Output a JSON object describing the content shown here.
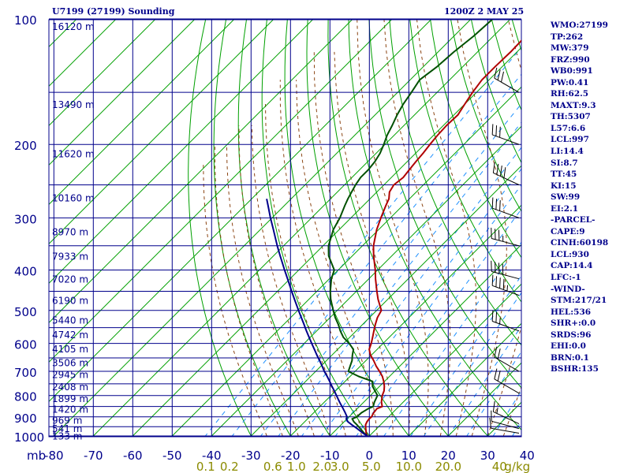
{
  "header": {
    "station": "U7199 (27199) Sounding",
    "valid_time": "1200Z  2 MAY 25"
  },
  "indices": [
    "WMO:27199",
    "TP:262",
    "MW:379",
    "FRZ:990",
    "WB0:991",
    "PW:0.41",
    "RH:62.5",
    "MAXT:9.3",
    "TH:5307",
    "L57:6.6",
    "LCL:997",
    "LI:14.4",
    "SI:8.7",
    "TT:45",
    "KI:15",
    "SW:99",
    "EI:2.1",
    "-PARCEL-",
    "CAPE:9",
    "CINH:60198",
    "LCL:930",
    "CAP:14.4",
    "LFC:-1",
    "-WIND-",
    "STM:217/21",
    "HEL:536",
    "SHR+:0.0",
    "SRDS:96",
    "EHI:0.0",
    "BRN:0.1",
    "BSHR:135"
  ],
  "colors": {
    "grid": "#00008b",
    "dry_adiabat": "#00a000",
    "moist_adiabat": "#8b4513",
    "mixing_ratio": "#1e90ff",
    "temperature": "#b00000",
    "dewpoint": "#005000",
    "parcel": "#00008b",
    "axis_text": "#00008b",
    "mixing_text": "#8b8b00"
  },
  "chart_data": {
    "type": "line",
    "xlabel": "",
    "ylabel": "mb",
    "xlim": [
      -80,
      40
    ],
    "ylim": [
      1000,
      100
    ],
    "pressure_ticks": [
      "1000",
      "900",
      "800",
      "700",
      "600",
      "500",
      "400",
      "300",
      "200",
      "100"
    ],
    "pressure_tick_values": [
      1000,
      900,
      800,
      700,
      600,
      500,
      400,
      300,
      200,
      100
    ],
    "temperature_ticks": [
      "-80",
      "-70",
      "-60",
      "-50",
      "-40",
      "-30",
      "-20",
      "-10",
      "0",
      "10",
      "20",
      "30",
      "40"
    ],
    "temperature_tick_values": [
      -80,
      -70,
      -60,
      -50,
      -40,
      -30,
      -20,
      -10,
      0,
      10,
      20,
      30,
      40
    ],
    "mixing_ratio_labels": [
      "0.1",
      "0.2",
      "0.6",
      "1.0",
      "2.0",
      "3.0",
      "5.0",
      "10.0",
      "20.0",
      "40",
      "g/kg"
    ],
    "mixing_ratio_label_positions": [
      -41.5,
      -35.5,
      -24.5,
      -18.5,
      -12,
      -7.5,
      0.5,
      10,
      20,
      33,
      37.5
    ],
    "height_labels": [
      {
        "p": 998,
        "label": "133 m"
      },
      {
        "p": 958,
        "label": "541 m"
      },
      {
        "p": 915,
        "label": "969 m"
      },
      {
        "p": 860,
        "label": "1420 m"
      },
      {
        "p": 812,
        "label": "1899 m"
      },
      {
        "p": 760,
        "label": "2408 m"
      },
      {
        "p": 710,
        "label": "2945 m"
      },
      {
        "p": 665,
        "label": "3506 m"
      },
      {
        "p": 617,
        "label": "4105 m"
      },
      {
        "p": 570,
        "label": "4742 m"
      },
      {
        "p": 526,
        "label": "5440 m"
      },
      {
        "p": 472,
        "label": "6190 m"
      },
      {
        "p": 420,
        "label": "7020 m"
      },
      {
        "p": 370,
        "label": "7933 m"
      },
      {
        "p": 323,
        "label": "8970 m"
      },
      {
        "p": 268,
        "label": "10160 m"
      },
      {
        "p": 210,
        "label": "11620 m"
      },
      {
        "p": 160,
        "label": "13490 m"
      },
      {
        "p": 104,
        "label": "16120 m"
      }
    ],
    "series": [
      {
        "key": "temperature",
        "p": [
          1000,
          985,
          960,
          940,
          925,
          910,
          900,
          880,
          860,
          850,
          830,
          800,
          780,
          760,
          740,
          720,
          700,
          680,
          660,
          640,
          620,
          600,
          580,
          560,
          540,
          520,
          500,
          470,
          450,
          420,
          400,
          370,
          350,
          320,
          300,
          280,
          270,
          260,
          250,
          240,
          230,
          220,
          210,
          200,
          190,
          180,
          170,
          160,
          150,
          140,
          130,
          120,
          110,
          100
        ],
        "t": [
          -0.5,
          -1.5,
          -2.8,
          -3.8,
          -4.2,
          -4.4,
          -4.3,
          -4.8,
          -5.0,
          -4.2,
          -5.5,
          -7.0,
          -7.7,
          -8.8,
          -10.2,
          -11.8,
          -13.8,
          -16.0,
          -18.0,
          -20.2,
          -22.0,
          -23.0,
          -24.2,
          -25.5,
          -26.8,
          -28.0,
          -28.8,
          -32.5,
          -34.8,
          -38.3,
          -40.6,
          -44.6,
          -47.2,
          -50.5,
          -52.4,
          -54.3,
          -55.2,
          -56.8,
          -57.5,
          -57.0,
          -57.4,
          -57.8,
          -58.1,
          -58.6,
          -59.0,
          -59.2,
          -59.0,
          -60.0,
          -61.0,
          -61.8,
          -61.8,
          -61.6,
          -61.8,
          -62.0
        ]
      },
      {
        "key": "dewpoint",
        "p": [
          1000,
          985,
          960,
          940,
          925,
          910,
          900,
          880,
          860,
          850,
          830,
          800,
          780,
          760,
          740,
          720,
          700,
          680,
          660,
          640,
          620,
          600,
          580,
          560,
          540,
          520,
          500,
          470,
          450,
          420,
          400,
          370,
          350,
          320,
          300,
          280,
          270,
          260,
          250,
          240,
          230,
          220,
          210,
          200,
          190,
          180,
          170,
          160,
          150,
          140,
          130,
          120,
          110,
          100
        ],
        "t": [
          -0.5,
          -2.0,
          -4.2,
          -6.0,
          -7.5,
          -8.7,
          -8.0,
          -7.9,
          -7.2,
          -6.5,
          -7.3,
          -8.2,
          -10.0,
          -11.8,
          -13.0,
          -17.8,
          -21.7,
          -22.6,
          -23.5,
          -24.8,
          -26.0,
          -28.6,
          -31.6,
          -34.0,
          -36.2,
          -38.7,
          -41.0,
          -44.5,
          -46.6,
          -49.5,
          -51.0,
          -56.0,
          -58.6,
          -61.5,
          -62.8,
          -64.7,
          -65.6,
          -66.4,
          -67.2,
          -67.8,
          -67.8,
          -68.2,
          -69.0,
          -70.3,
          -71.8,
          -73.0,
          -74.4,
          -75.6,
          -76.5,
          -77.6,
          -76.5,
          -76.0,
          -75.0,
          -74.5
        ]
      },
      {
        "key": "parcel",
        "p": [
          1000,
          985,
          960,
          940,
          925,
          910,
          900,
          880,
          860,
          850,
          830,
          800,
          780,
          760,
          740,
          720,
          700,
          680,
          660,
          640,
          620,
          600,
          580,
          560,
          540,
          520,
          500,
          470,
          450,
          420,
          400,
          370,
          350,
          320,
          300,
          280,
          270
        ],
        "t": [
          -0.5,
          -2.3,
          -5.0,
          -7.3,
          -9.0,
          -10.2,
          -10.5,
          -12.0,
          -13.6,
          -14.4,
          -16.1,
          -18.6,
          -20.3,
          -22.1,
          -23.9,
          -25.8,
          -27.8,
          -29.7,
          -31.7,
          -33.8,
          -35.9,
          -38.1,
          -40.3,
          -42.6,
          -44.9,
          -47.3,
          -49.8,
          -53.7,
          -56.4,
          -60.6,
          -63.6,
          -68.3,
          -71.6,
          -76.7,
          -80.4,
          -84.2,
          -86.2
        ]
      }
    ],
    "wind_barbs": [
      {
        "p": 985,
        "dir": 280,
        "speed_kt": 10
      },
      {
        "p": 960,
        "dir": 285,
        "speed_kt": 10
      },
      {
        "p": 935,
        "dir": 295,
        "speed_kt": 15
      },
      {
        "p": 790,
        "dir": 300,
        "speed_kt": 20
      },
      {
        "p": 700,
        "dir": 300,
        "speed_kt": 20
      },
      {
        "p": 560,
        "dir": 290,
        "speed_kt": 25
      },
      {
        "p": 460,
        "dir": 290,
        "speed_kt": 45
      },
      {
        "p": 420,
        "dir": 285,
        "speed_kt": 40
      },
      {
        "p": 350,
        "dir": 285,
        "speed_kt": 35
      },
      {
        "p": 300,
        "dir": 290,
        "speed_kt": 30
      },
      {
        "p": 250,
        "dir": 295,
        "speed_kt": 40
      },
      {
        "p": 200,
        "dir": 290,
        "speed_kt": 30
      },
      {
        "p": 150,
        "dir": 300,
        "speed_kt": 30
      }
    ]
  }
}
